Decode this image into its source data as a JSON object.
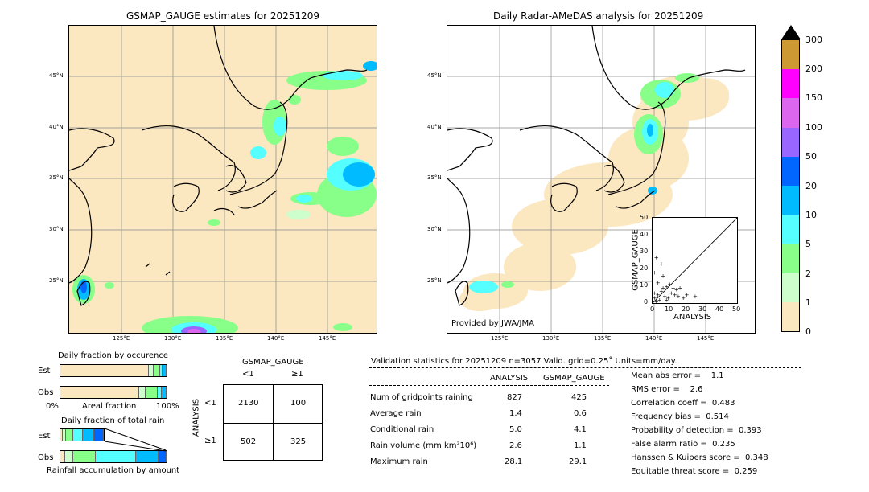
{
  "left_map": {
    "title": "GSMAP_GAUGE estimates for 20251209",
    "lat_labels": [
      "45°N",
      "40°N",
      "35°N",
      "30°N",
      "25°N"
    ],
    "lon_labels": [
      "125°E",
      "130°E",
      "135°E",
      "140°E",
      "145°E"
    ]
  },
  "right_map": {
    "title": "Daily Radar-AMeDAS analysis for 20251209",
    "lat_labels": [
      "45°N",
      "40°N",
      "35°N",
      "30°N",
      "25°N"
    ],
    "lon_labels": [
      "125°E",
      "130°E",
      "135°E",
      "140°E",
      "145°E"
    ],
    "credit": "Provided by JWA/JMA"
  },
  "colorbar": {
    "ticks": [
      "300",
      "200",
      "150",
      "100",
      "50",
      "20",
      "10",
      "5",
      "2",
      "1",
      "0"
    ],
    "colors": [
      "#cc9933",
      "#ff00ff",
      "#dd66ee",
      "#9966ff",
      "#0066ff",
      "#00bbff",
      "#55ffff",
      "#88ff88",
      "#ccffcc",
      "#fbe7c0"
    ]
  },
  "scatter": {
    "xlabel": "ANALYSIS",
    "ylabel": "GSMAP_GAUGE",
    "ticks": [
      "0",
      "10",
      "20",
      "30",
      "40",
      "50"
    ]
  },
  "occurrence": {
    "title": "Daily fraction by occurence",
    "est_label": "Est",
    "obs_label": "Obs",
    "axis_left": "0%",
    "axis_mid": "Areal fraction",
    "axis_right": "100%"
  },
  "total_rain": {
    "title": "Daily fraction of total rain",
    "est_label": "Est",
    "obs_label": "Obs",
    "footer": "Rainfall accumulation by amount"
  },
  "contingency": {
    "title": "GSMAP_GAUGE",
    "col_lt": "<1",
    "col_ge": "≥1",
    "row_axis": "ANALYSIS",
    "row_lt": "<1",
    "row_ge": "≥1",
    "c11": "2130",
    "c12": "100",
    "c21": "502",
    "c22": "325"
  },
  "validation": {
    "header": "Validation statistics for 20251209  n=3057 Valid. grid=0.25˚ Units=mm/day.",
    "col_analysis": "ANALYSIS",
    "col_gsmap": "GSMAP_GAUGE",
    "rows": [
      {
        "label": "Num of gridpoints raining",
        "a": "827",
        "g": "425"
      },
      {
        "label": "Average rain",
        "a": "1.4",
        "g": "0.6"
      },
      {
        "label": "Conditional rain",
        "a": "5.0",
        "g": "4.1"
      },
      {
        "label": "Rain volume (mm km²10⁶)",
        "a": "2.6",
        "g": "1.1"
      },
      {
        "label": "Maximum rain",
        "a": "28.1",
        "g": "29.1"
      }
    ],
    "scores": [
      "Mean abs error =    1.1",
      "RMS error =    2.6",
      "Correlation coeff =  0.483",
      "Frequency bias =  0.514",
      "Probability of detection =  0.393",
      "False alarm ratio =  0.235",
      "Hanssen & Kuipers score =  0.348",
      "Equitable threat score =  0.259"
    ]
  },
  "chart_data": [
    {
      "type": "heatmap",
      "title": "GSMAP_GAUGE estimates for 20251209",
      "xlabel": "",
      "ylabel": "",
      "x_ticks": [
        "125°E",
        "130°E",
        "135°E",
        "140°E",
        "145°E"
      ],
      "y_ticks": [
        "45°N",
        "40°N",
        "35°N",
        "30°N",
        "25°N"
      ]
    },
    {
      "type": "heatmap",
      "title": "Daily Radar-AMeDAS analysis for 20251209",
      "xlabel": "",
      "ylabel": "",
      "x_ticks": [
        "125°E",
        "130°E",
        "135°E",
        "140°E",
        "145°E"
      ],
      "y_ticks": [
        "45°N",
        "40°N",
        "35°N",
        "30°N",
        "25°N"
      ]
    },
    {
      "type": "scatter",
      "xlabel": "ANALYSIS",
      "ylabel": "GSMAP_GAUGE",
      "xlim": [
        0,
        50
      ],
      "ylim": [
        0,
        50
      ],
      "points": [
        [
          2,
          27
        ],
        [
          5,
          23
        ],
        [
          1,
          18
        ],
        [
          3,
          12
        ],
        [
          6,
          16
        ],
        [
          8,
          10
        ],
        [
          10,
          11
        ],
        [
          12,
          9
        ],
        [
          14,
          8
        ],
        [
          15,
          4
        ],
        [
          20,
          5
        ],
        [
          25,
          4
        ],
        [
          9,
          3
        ],
        [
          7,
          4
        ],
        [
          4,
          2
        ],
        [
          2,
          1
        ],
        [
          1,
          3
        ],
        [
          3,
          5
        ],
        [
          5,
          7
        ],
        [
          11,
          6
        ],
        [
          13,
          5
        ],
        [
          16,
          9
        ],
        [
          18,
          3
        ],
        [
          6,
          9
        ],
        [
          8,
          2
        ],
        [
          1,
          6
        ]
      ]
    },
    {
      "type": "bar",
      "title": "Daily fraction by occurence",
      "categories": [
        "Est",
        "Obs"
      ],
      "series": [
        {
          "values": [
            0.86,
            0.76
          ]
        },
        {
          "values": [
            0.04,
            0.06
          ]
        },
        {
          "values": [
            0.05,
            0.11
          ]
        },
        {
          "values": [
            0.02,
            0.03
          ]
        },
        {
          "values": [
            0.03,
            0.04
          ]
        }
      ]
    },
    {
      "type": "bar",
      "title": "Daily fraction of total rain",
      "categories": [
        "Est",
        "Obs"
      ],
      "series": [
        {
          "values": [
            0.05,
            0.04
          ]
        },
        {
          "values": [
            0.05,
            0.07
          ]
        },
        {
          "values": [
            0.18,
            0.21
          ]
        },
        {
          "values": [
            0.22,
            0.38
          ]
        },
        {
          "values": [
            0.28,
            0.21
          ]
        },
        {
          "values": [
            0.22,
            0.07
          ]
        }
      ]
    }
  ]
}
